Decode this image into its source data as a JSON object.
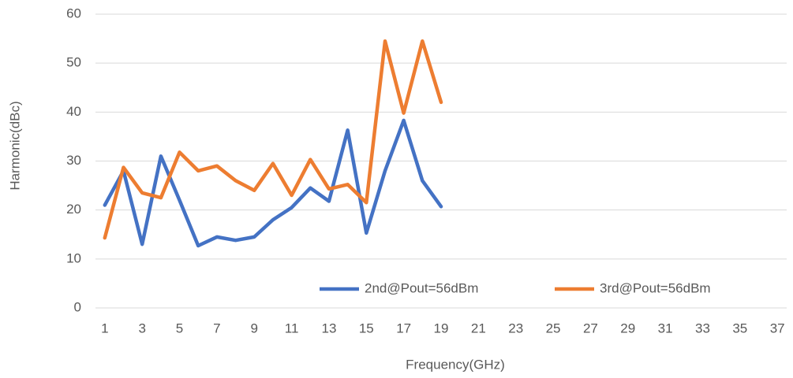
{
  "chart_data": {
    "type": "line",
    "x_label": "Frequency(GHz)",
    "y_label": "Harmonic(dBc)",
    "categories": [
      "1",
      null,
      "3",
      null,
      "5",
      null,
      "7",
      null,
      "9",
      null,
      "11",
      null,
      "13",
      null,
      "15",
      null,
      "17",
      null,
      "19",
      null,
      "21",
      null,
      "23",
      null,
      "25",
      null,
      "27",
      null,
      "29",
      null,
      "31",
      null,
      "33",
      null,
      "35",
      null,
      "37"
    ],
    "series": [
      {
        "name": "2nd@Pout=56dBm",
        "color": "#4472c4",
        "values": [
          21,
          28,
          13,
          31,
          22,
          12.7,
          14.5,
          13.8,
          14.5,
          18,
          20.5,
          24.5,
          21.8,
          36.3,
          15.3,
          28,
          38.3,
          26,
          20.7,
          null,
          null,
          null,
          null,
          null,
          null,
          null,
          null,
          null,
          null,
          null,
          null,
          null,
          null,
          null,
          null,
          null,
          null
        ]
      },
      {
        "name": "3rd@Pout=56dBm",
        "color": "#ed7d31",
        "values": [
          14.3,
          28.7,
          23.5,
          22.5,
          31.8,
          28,
          29,
          26,
          24,
          29.5,
          23,
          30.3,
          24.3,
          25.2,
          21.5,
          54.5,
          39.8,
          54.5,
          42,
          null,
          null,
          null,
          null,
          null,
          null,
          null,
          null,
          null,
          null,
          null,
          null,
          null,
          null,
          null,
          null,
          null,
          null
        ]
      }
    ],
    "ylim": [
      0,
      60
    ],
    "yticks": [
      0,
      10,
      20,
      30,
      40,
      50,
      60
    ],
    "grid": true,
    "legend": "lower center"
  }
}
